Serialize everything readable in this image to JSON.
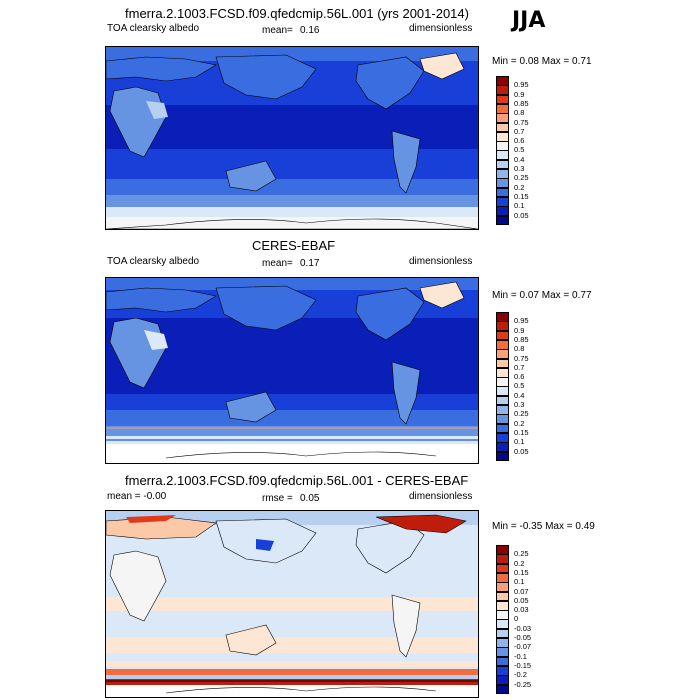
{
  "season": "JJA",
  "panels": [
    {
      "title": "fmerra.2.1003.FCSD.f09.qfedcmip.56L.001 (yrs 2001-2014)",
      "left_label": "TOA clearsky albedo",
      "mean_label": "mean=",
      "mean_value": "0.16",
      "units": "dimensionless",
      "minmax": "Min =   0.08 Max =   0.71"
    },
    {
      "title": "CERES-EBAF",
      "left_label": "TOA clearsky albedo",
      "mean_label": "mean=",
      "mean_value": "0.17",
      "units": "dimensionless",
      "minmax": "Min =   0.07 Max =   0.77"
    },
    {
      "title": "fmerra.2.1003.FCSD.f09.qfedcmip.56L.001 - CERES-EBAF",
      "left_label": "mean =  -0.00",
      "rmse_label": "rmse =",
      "rmse_value": "0.05",
      "units": "dimensionless",
      "minmax": "Min =  -0.35 Max =   0.49"
    }
  ],
  "colorbars": {
    "abs_labels": [
      "0.95",
      "0.9",
      "0.85",
      "0.8",
      "0.75",
      "0.7",
      "0.6",
      "0.5",
      "0.4",
      "0.3",
      "0.25",
      "0.2",
      "0.15",
      "0.1",
      "0.05"
    ],
    "abs_colors": [
      "#8b0000",
      "#c01c0c",
      "#e03a1a",
      "#f26c3e",
      "#f7a07a",
      "#fbc9a8",
      "#fde7d4",
      "#f5f5f5",
      "#dbe8f7",
      "#b8d0f0",
      "#91b5ea",
      "#6693e2",
      "#3a6ee0",
      "#1840d8",
      "#0a1fb8",
      "#000a8a"
    ],
    "diff_labels": [
      "0.25",
      "0.2",
      "0.15",
      "0.1",
      "0.07",
      "0.05",
      "0.03",
      "0",
      "-0.03",
      "-0.05",
      "-0.07",
      "-0.1",
      "-0.15",
      "-0.2",
      "-0.25"
    ],
    "diff_colors": [
      "#8b0000",
      "#c01c0c",
      "#e03a1a",
      "#f26c3e",
      "#f7a07a",
      "#fbc9a8",
      "#fde7d4",
      "#f5f5f5",
      "#dbe8f7",
      "#b8d0f0",
      "#91b5ea",
      "#6693e2",
      "#3a6ee0",
      "#1840d8",
      "#0a1fb8",
      "#000a8a"
    ]
  }
}
